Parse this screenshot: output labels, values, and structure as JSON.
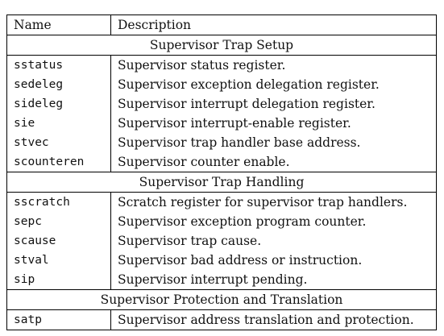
{
  "header": {
    "name": "Name",
    "description": "Description"
  },
  "sections": [
    {
      "title": "Supervisor Trap Setup",
      "rows": [
        {
          "name": "sstatus",
          "description": "Supervisor status register."
        },
        {
          "name": "sedeleg",
          "description": "Supervisor exception delegation register."
        },
        {
          "name": "sideleg",
          "description": "Supervisor interrupt delegation register."
        },
        {
          "name": "sie",
          "description": "Supervisor interrupt-enable register."
        },
        {
          "name": "stvec",
          "description": "Supervisor trap handler base address."
        },
        {
          "name": "scounteren",
          "description": "Supervisor counter enable."
        }
      ]
    },
    {
      "title": "Supervisor Trap Handling",
      "rows": [
        {
          "name": "sscratch",
          "description": "Scratch register for supervisor trap handlers."
        },
        {
          "name": "sepc",
          "description": "Supervisor exception program counter."
        },
        {
          "name": "scause",
          "description": "Supervisor trap cause."
        },
        {
          "name": "stval",
          "description": "Supervisor bad address or instruction."
        },
        {
          "name": "sip",
          "description": "Supervisor interrupt pending."
        }
      ]
    },
    {
      "title": "Supervisor Protection and Translation",
      "rows": [
        {
          "name": "satp",
          "description": "Supervisor address translation and protection."
        }
      ]
    }
  ]
}
